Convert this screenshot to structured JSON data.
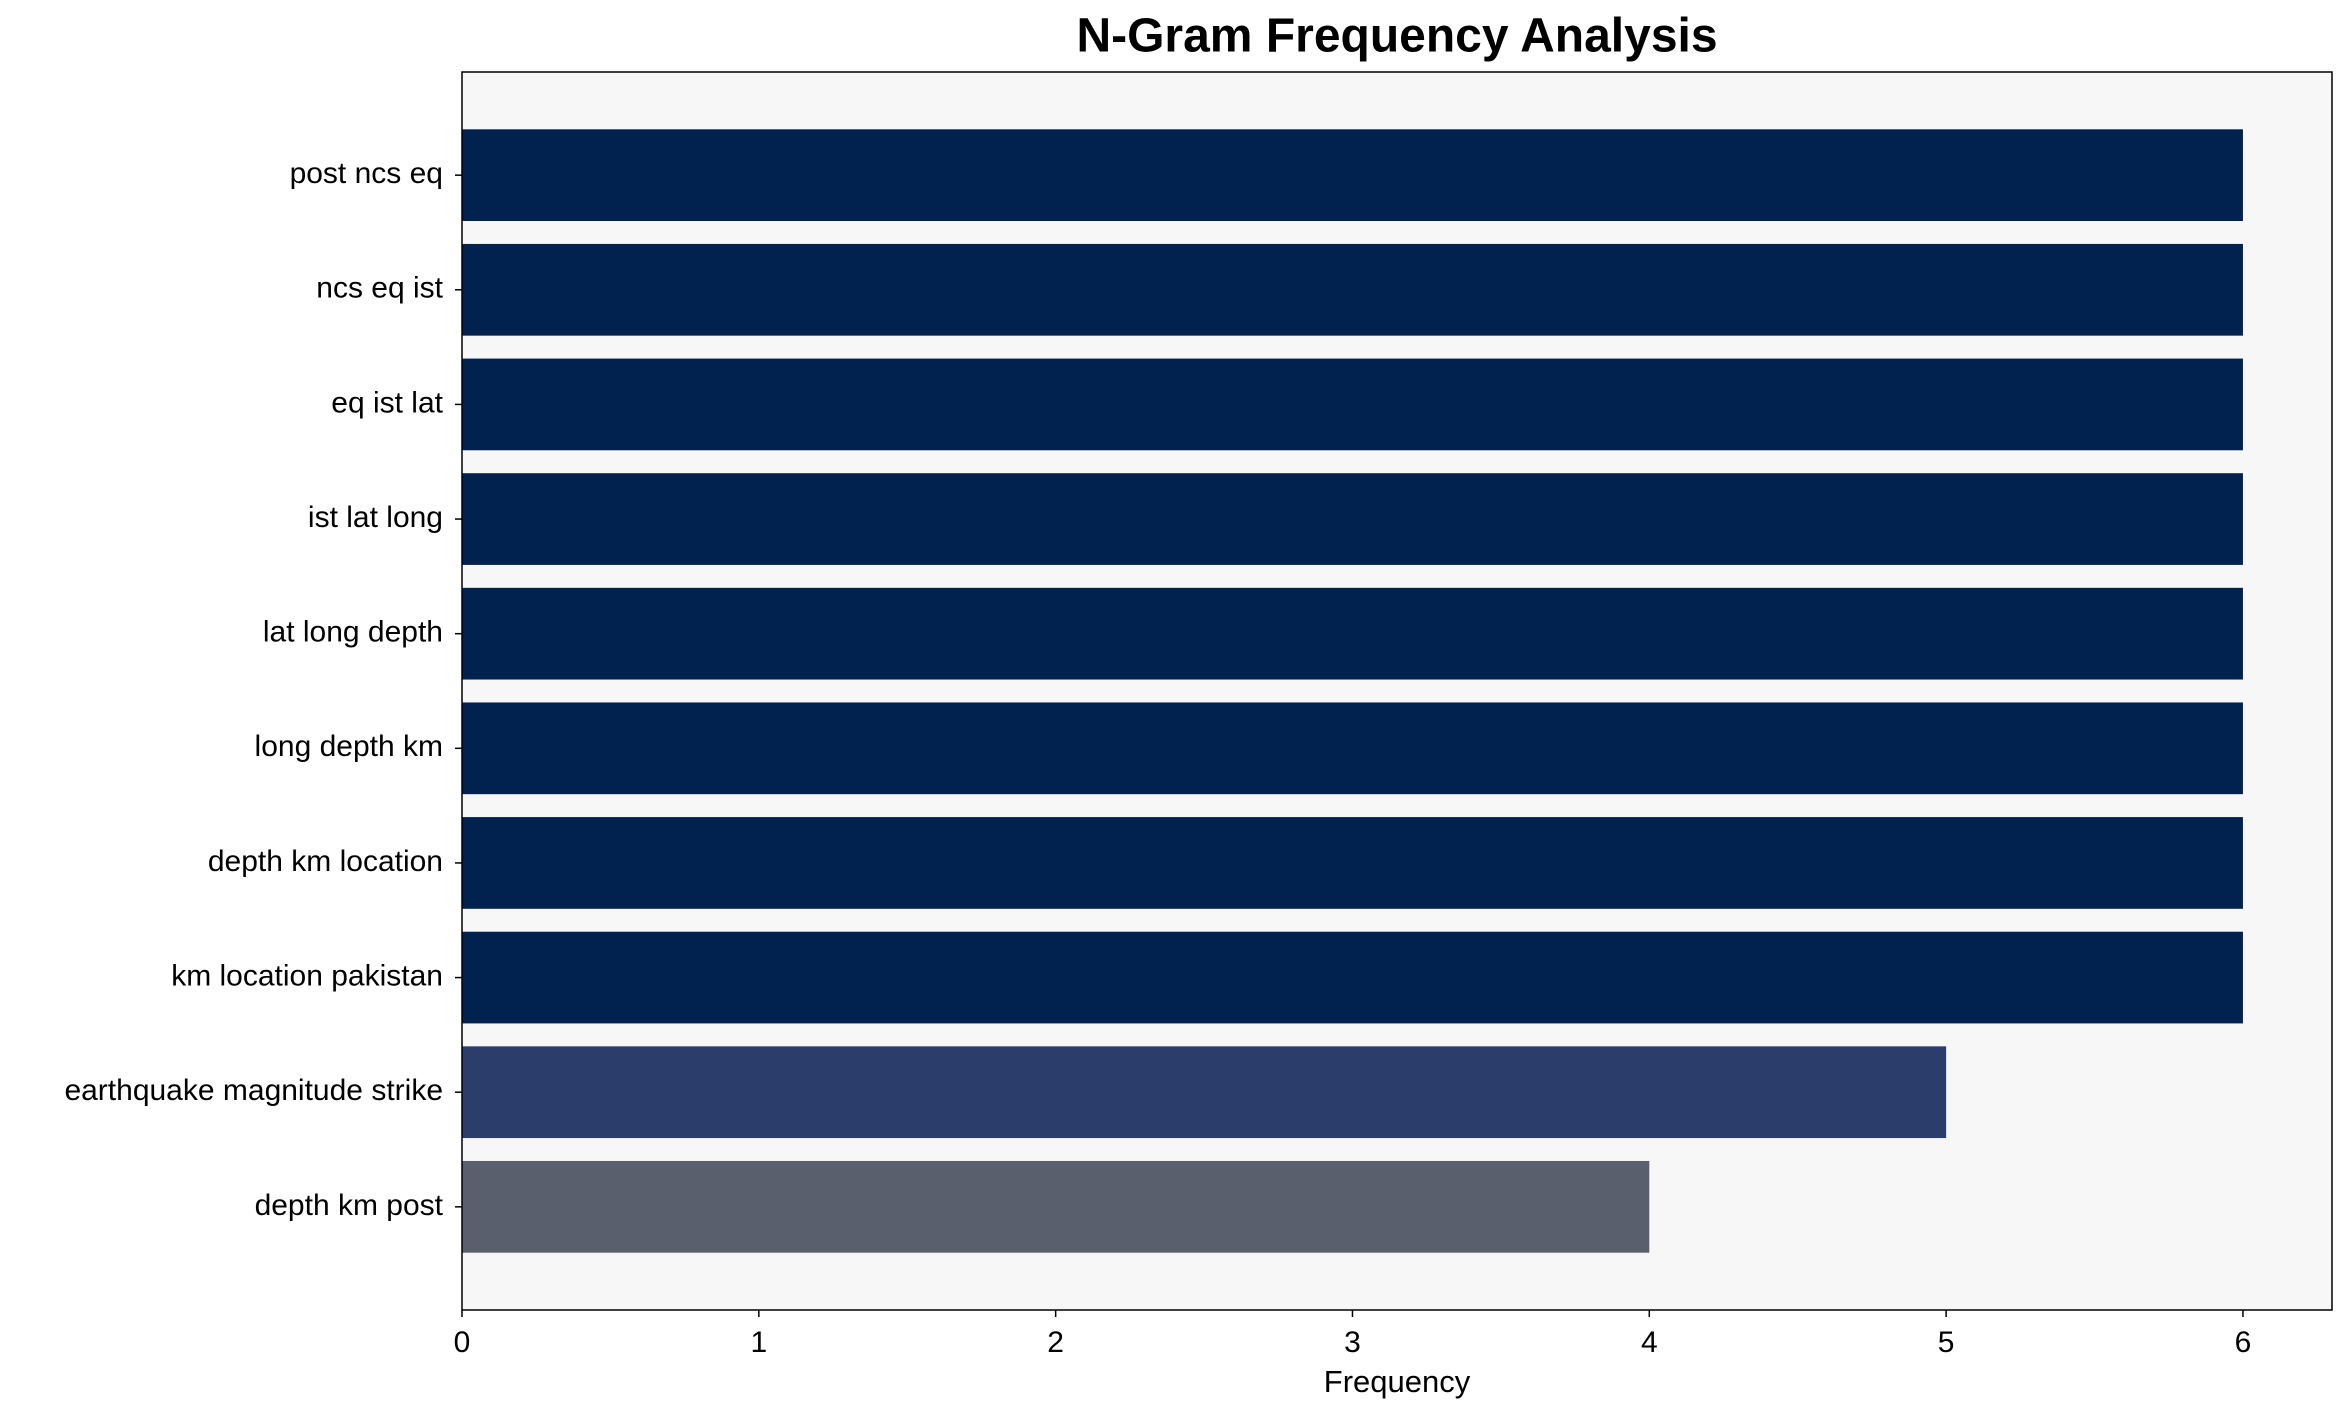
{
  "chart_data": {
    "type": "barh",
    "title": "N-Gram Frequency Analysis",
    "x_label": "Frequency",
    "categories": [
      "post ncs eq",
      "ncs eq ist",
      "eq ist lat",
      "ist lat long",
      "lat long depth",
      "long depth km",
      "depth km location",
      "km location pakistan",
      "earthquake magnitude strike",
      "depth km post"
    ],
    "values": [
      6,
      6,
      6,
      6,
      6,
      6,
      6,
      6,
      5,
      4
    ],
    "colors": [
      "#01214f",
      "#01214f",
      "#01214f",
      "#01214f",
      "#01214f",
      "#01214f",
      "#01214f",
      "#01214f",
      "#2b3d6b",
      "#5a5f6e"
    ],
    "xlim": [
      0,
      6.3
    ],
    "xticks": [
      0,
      1,
      2,
      3,
      4,
      5,
      6
    ],
    "background": "#f7f7f7"
  }
}
